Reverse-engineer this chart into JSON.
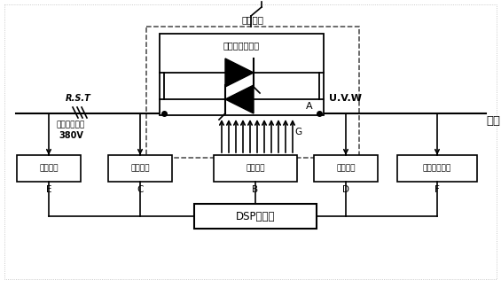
{
  "bg_color": "#ffffff",
  "fig_width": 5.65,
  "fig_height": 3.25,
  "dpi": 100,
  "rst_label": "R.S.T",
  "uvw_label": "U.V.W",
  "motor_label": "电机",
  "power_line1": "三相交流电源",
  "power_line2": "380V",
  "bypass_label": "旁路开关",
  "thyristor_label": "五组可控硅模块",
  "thyristor_A": "A",
  "thyristor_G": "G",
  "box_sync": "同步信号",
  "box_volt": "电压采样",
  "box_drive": "驱动电路",
  "box_curr": "电流采样",
  "box_zero": "电流过零检测",
  "box_dsp": "DSP控制器",
  "label_E": "E",
  "label_C": "C",
  "label_B": "B",
  "label_D": "D",
  "label_F": "F",
  "line_color": "#000000"
}
